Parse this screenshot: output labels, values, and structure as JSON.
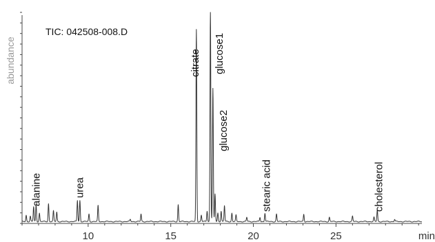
{
  "chart_data": {
    "type": "line",
    "title": "TIC: 042508-008.D",
    "xlabel": "min",
    "ylabel": "abundance",
    "xlim": [
      6,
      30.2
    ],
    "ylim": [
      0,
      100
    ],
    "x_ticks": [
      10,
      15,
      20,
      25
    ],
    "grid": false,
    "series": [
      {
        "peaks": [
          {
            "x": 6.25,
            "y": 3
          },
          {
            "x": 6.5,
            "y": 2.5
          },
          {
            "x": 6.7,
            "y": 7
          },
          {
            "x": 6.85,
            "y": 8
          },
          {
            "x": 7.05,
            "y": 4
          },
          {
            "x": 7.6,
            "y": 8.5
          },
          {
            "x": 7.9,
            "y": 5
          },
          {
            "x": 8.1,
            "y": 4.5
          },
          {
            "x": 9.35,
            "y": 10
          },
          {
            "x": 9.5,
            "y": 10
          },
          {
            "x": 10.05,
            "y": 3.5
          },
          {
            "x": 10.6,
            "y": 7.5
          },
          {
            "x": 12.55,
            "y": 1
          },
          {
            "x": 13.2,
            "y": 3.5
          },
          {
            "x": 15.45,
            "y": 8
          },
          {
            "x": 16.55,
            "y": 91
          },
          {
            "x": 16.85,
            "y": 3
          },
          {
            "x": 17.2,
            "y": 5
          },
          {
            "x": 17.4,
            "y": 100
          },
          {
            "x": 17.55,
            "y": 63
          },
          {
            "x": 17.68,
            "y": 13
          },
          {
            "x": 17.85,
            "y": 4
          },
          {
            "x": 18.05,
            "y": 5
          },
          {
            "x": 18.25,
            "y": 7.5
          },
          {
            "x": 18.7,
            "y": 4
          },
          {
            "x": 18.95,
            "y": 3
          },
          {
            "x": 19.6,
            "y": 2
          },
          {
            "x": 20.4,
            "y": 2
          },
          {
            "x": 20.7,
            "y": 4
          },
          {
            "x": 21.4,
            "y": 3.5
          },
          {
            "x": 23.05,
            "y": 3.5
          },
          {
            "x": 24.6,
            "y": 2
          },
          {
            "x": 26.0,
            "y": 2.5
          },
          {
            "x": 27.3,
            "y": 2
          },
          {
            "x": 27.5,
            "y": 5.5
          },
          {
            "x": 28.55,
            "y": 1
          }
        ]
      }
    ],
    "annotations": [
      {
        "text": "alanine",
        "x": 6.85
      },
      {
        "text": "urea",
        "x": 9.45
      },
      {
        "text": "citrate",
        "x": 16.55
      },
      {
        "text": "glucose1",
        "x": 17.4
      },
      {
        "text": "glucose2",
        "x": 17.55
      },
      {
        "text": "stearic acid",
        "x": 20.7
      },
      {
        "text": "cholesterol",
        "x": 27.5
      }
    ]
  }
}
